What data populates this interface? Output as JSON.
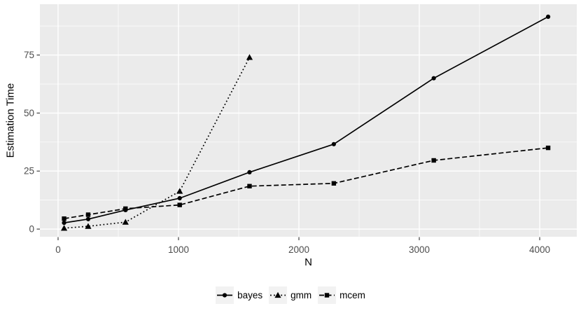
{
  "figure": {
    "background": "#FFFFFF",
    "panel_background": "#EBEBEB",
    "grid_color": "#FFFFFF",
    "series_color": "#000000",
    "tick_mark_color": "#333333",
    "tick_label_color": "#4D4D4D",
    "axis_title_color": "#000000",
    "legend_key_background": "#F2F2F2"
  },
  "chart_data": {
    "type": "line",
    "title": "",
    "xlabel": "N",
    "ylabel": "Estimation Time",
    "x_ticks": [
      0,
      1000,
      2000,
      3000,
      4000
    ],
    "y_ticks": [
      0,
      25,
      50,
      75
    ],
    "x_minor_ticks": [
      500,
      1500,
      2500,
      3500
    ],
    "y_minor_ticks": [
      12.5,
      37.5,
      62.5,
      87.5
    ],
    "xlim": [
      -151,
      4308
    ],
    "ylim": [
      -3.3,
      96.9
    ],
    "grid": "white major and minor gridlines on grey panel",
    "legend_position": "bottom-center",
    "series": [
      {
        "name": "bayes",
        "linetype": "solid",
        "marker": "circle",
        "color": "#000000",
        "x": [
          50,
          250,
          560,
          1010,
          1590,
          2290,
          3120,
          4070
        ],
        "y": [
          2.7,
          4.3,
          8.2,
          13.3,
          24.5,
          36.6,
          65,
          91.5
        ]
      },
      {
        "name": "gmm",
        "linetype": "dotted",
        "marker": "triangle",
        "color": "#000000",
        "x": [
          50,
          250,
          560,
          1010,
          1590
        ],
        "y": [
          0.4,
          1.2,
          3.0,
          16.3,
          74
        ]
      },
      {
        "name": "mcem",
        "linetype": "dashed",
        "marker": "square",
        "color": "#000000",
        "x": [
          50,
          250,
          560,
          1010,
          1590,
          2290,
          3120,
          4070
        ],
        "y": [
          4.5,
          6.2,
          8.8,
          10.4,
          18.5,
          19.7,
          29.6,
          35
        ]
      }
    ]
  }
}
